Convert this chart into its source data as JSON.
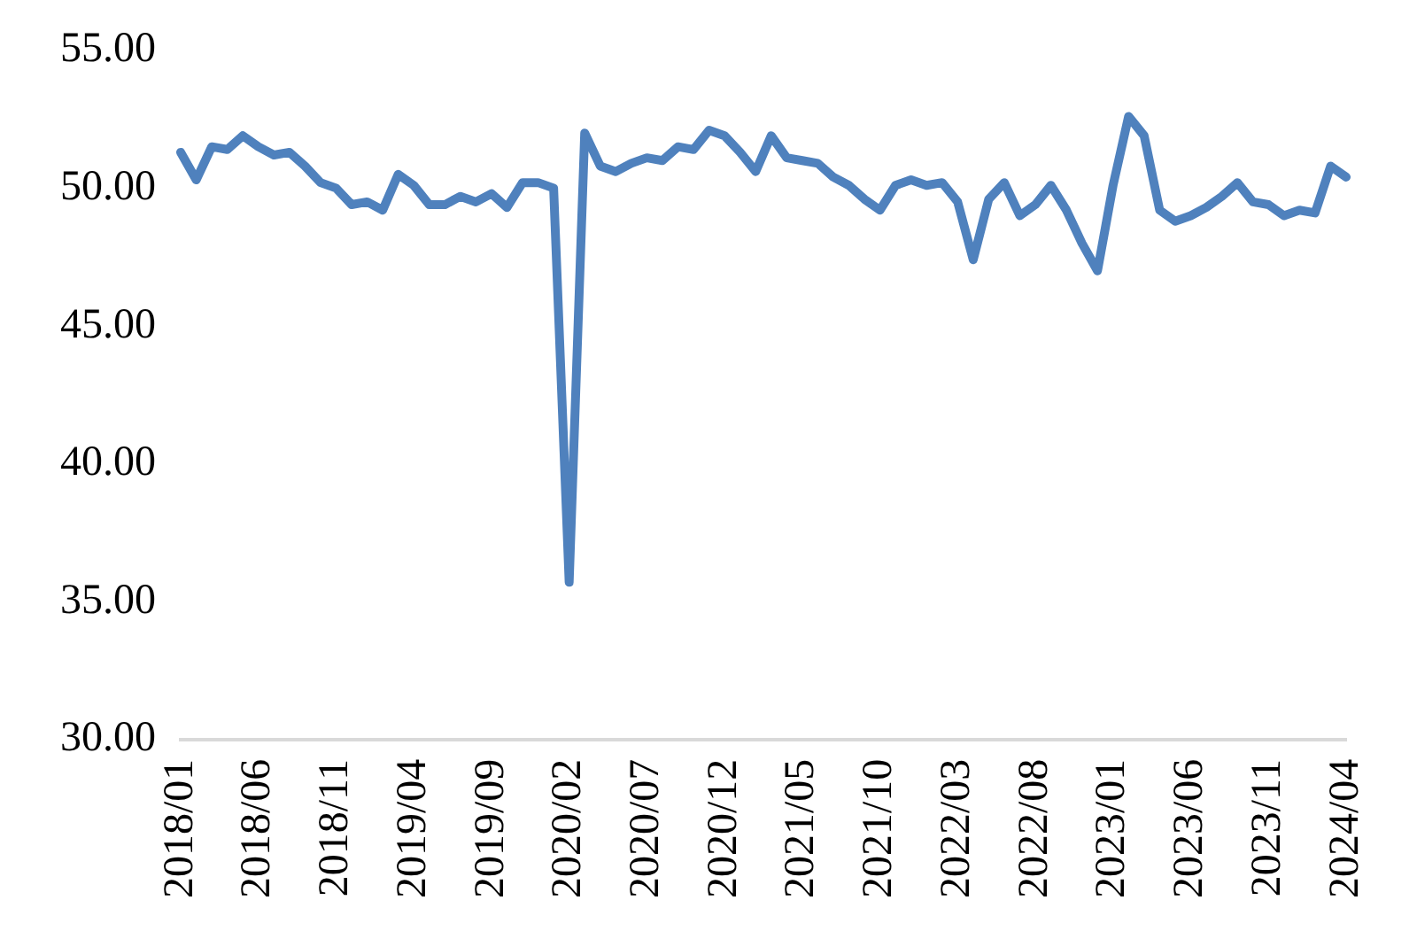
{
  "chart_data": {
    "type": "line",
    "categories": [
      "2018/01",
      null,
      null,
      null,
      null,
      "2018/06",
      null,
      null,
      null,
      null,
      "2018/11",
      null,
      null,
      null,
      null,
      "2019/04",
      null,
      null,
      null,
      null,
      "2019/09",
      null,
      null,
      null,
      null,
      "2020/02",
      null,
      null,
      null,
      null,
      "2020/07",
      null,
      null,
      null,
      null,
      "2020/12",
      null,
      null,
      null,
      null,
      "2021/05",
      null,
      null,
      null,
      null,
      "2021/10",
      null,
      null,
      null,
      null,
      "2022/03",
      null,
      null,
      null,
      null,
      "2022/08",
      null,
      null,
      null,
      null,
      "2023/01",
      null,
      null,
      null,
      null,
      "2023/06",
      null,
      null,
      null,
      null,
      "2023/11",
      null,
      null,
      null,
      null,
      "2024/04"
    ],
    "series": [
      {
        "color": "#4f81bd",
        "values": [
          51.3,
          50.3,
          51.5,
          51.4,
          51.9,
          51.5,
          51.2,
          51.3,
          50.8,
          50.2,
          50.0,
          49.4,
          49.5,
          49.2,
          50.5,
          50.1,
          49.4,
          49.4,
          49.7,
          49.5,
          49.8,
          49.3,
          50.2,
          50.2,
          50.0,
          35.7,
          52.0,
          50.8,
          50.6,
          50.9,
          51.1,
          51.0,
          51.5,
          51.4,
          52.1,
          51.9,
          51.3,
          50.6,
          51.9,
          51.1,
          51.0,
          50.9,
          50.4,
          50.1,
          49.6,
          49.2,
          50.1,
          50.3,
          50.1,
          50.2,
          49.5,
          47.4,
          49.6,
          50.2,
          49.0,
          49.4,
          50.1,
          49.2,
          48.0,
          47.0,
          50.1,
          52.6,
          51.9,
          49.2,
          48.8,
          49.0,
          49.3,
          49.7,
          50.2,
          49.5,
          49.4,
          49.0,
          49.2,
          49.1,
          50.8,
          50.4
        ]
      }
    ],
    "ylim": [
      30,
      55
    ],
    "yticks": [
      {
        "value": 30,
        "label": "30.00"
      },
      {
        "value": 35,
        "label": "35.00"
      },
      {
        "value": 40,
        "label": "40.00"
      },
      {
        "value": 45,
        "label": "45.00"
      },
      {
        "value": 50,
        "label": "50.00"
      },
      {
        "value": 55,
        "label": "55.00"
      }
    ],
    "grid": false,
    "legend": false,
    "marker": "none",
    "line_style": "solid"
  }
}
